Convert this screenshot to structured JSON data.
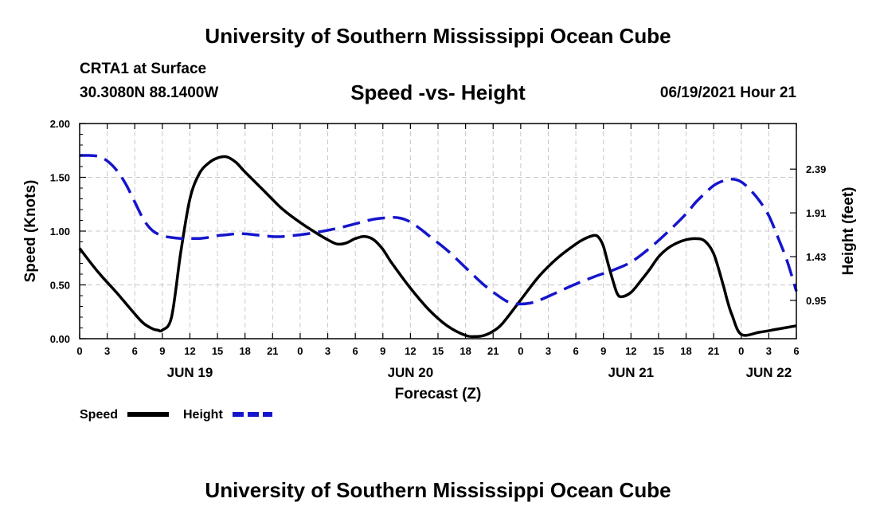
{
  "header": {
    "top_title": "University of Southern Mississippi Ocean Cube",
    "station": "CRTA1 at Surface",
    "coordinates": "30.3080N  88.1400W",
    "chart_title": "Speed -vs- Height",
    "datetime": "06/19/2021 Hour 21",
    "bottom_title": "University of Southern Mississippi Ocean Cube"
  },
  "colors": {
    "speed": "#000000",
    "height": "#1515cc",
    "grid": "#c8c8c8"
  },
  "chart_data": {
    "type": "line",
    "title": "Speed -vs- Height",
    "xlabel": "Forecast (Z)",
    "ylabel": "Speed (Knots)",
    "y2label": "Height (feet)",
    "xlim": [
      0,
      78
    ],
    "ylim": [
      0,
      2
    ],
    "y2lim": [
      0.53,
      2.89
    ],
    "x_ticks": [
      0,
      3,
      6,
      9,
      12,
      15,
      18,
      21,
      24,
      27,
      30,
      33,
      36,
      39,
      42,
      45,
      48,
      51,
      54,
      57,
      60,
      63,
      66,
      69,
      72,
      75,
      78
    ],
    "x_tick_labels": [
      "0",
      "3",
      "6",
      "9",
      "12",
      "15",
      "18",
      "21",
      "0",
      "3",
      "6",
      "9",
      "12",
      "15",
      "18",
      "21",
      "0",
      "3",
      "6",
      "9",
      "12",
      "15",
      "18",
      "21",
      "0",
      "3",
      "6"
    ],
    "day_labels": [
      {
        "x": 12,
        "label": "JUN 19"
      },
      {
        "x": 36,
        "label": "JUN 20"
      },
      {
        "x": 60,
        "label": "JUN 21"
      },
      {
        "x": 75,
        "label": "JUN 22"
      }
    ],
    "y_ticks": [
      0,
      0.5,
      1,
      1.5,
      2
    ],
    "y_tick_labels": [
      "0.00",
      "0.50",
      "1.00",
      "1.50",
      "2.00"
    ],
    "y2_ticks": [
      0.95,
      1.43,
      1.91,
      2.39
    ],
    "y2_tick_labels": [
      "0.95",
      "1.43",
      "1.91",
      "2.39"
    ],
    "series": [
      {
        "name": "Speed",
        "axis": "left",
        "style": "solid",
        "x": [
          0,
          2,
          4,
          6,
          7,
          8,
          8.5,
          9,
          10,
          11,
          12,
          13,
          14,
          15,
          16,
          17,
          18,
          20,
          22,
          24,
          26,
          27,
          28,
          29,
          30,
          31,
          32,
          33,
          34,
          36,
          38,
          40,
          42,
          43,
          44,
          45,
          46,
          48,
          50,
          52,
          54,
          55,
          56,
          56.5,
          57,
          57.5,
          58,
          58.5,
          59,
          60,
          61,
          62,
          63,
          64,
          65,
          66,
          67,
          68,
          69,
          70,
          70.5,
          71,
          72,
          74,
          76,
          78
        ],
        "values": [
          0.84,
          0.62,
          0.43,
          0.23,
          0.14,
          0.09,
          0.08,
          0.08,
          0.2,
          0.8,
          1.3,
          1.53,
          1.63,
          1.68,
          1.69,
          1.64,
          1.55,
          1.38,
          1.21,
          1.08,
          0.97,
          0.92,
          0.88,
          0.89,
          0.93,
          0.95,
          0.92,
          0.83,
          0.7,
          0.47,
          0.27,
          0.12,
          0.03,
          0.02,
          0.03,
          0.07,
          0.14,
          0.36,
          0.58,
          0.75,
          0.88,
          0.93,
          0.96,
          0.94,
          0.86,
          0.7,
          0.55,
          0.42,
          0.39,
          0.43,
          0.53,
          0.64,
          0.76,
          0.84,
          0.89,
          0.92,
          0.93,
          0.91,
          0.79,
          0.51,
          0.35,
          0.22,
          0.04,
          0.06,
          0.09,
          0.12
        ]
      },
      {
        "name": "Height",
        "axis": "right",
        "style": "dashed",
        "x": [
          0,
          1,
          2,
          3,
          4,
          5,
          6,
          7,
          8,
          9,
          10,
          11,
          12,
          13,
          14,
          15,
          16,
          17,
          18,
          19,
          20,
          21,
          22,
          24,
          26,
          28,
          30,
          32,
          34,
          35,
          36,
          37,
          38,
          40,
          42,
          44,
          46,
          47,
          48,
          49,
          50,
          52,
          54,
          56,
          58,
          60,
          62,
          64,
          66,
          67,
          68,
          69,
          70,
          71,
          72,
          73,
          74,
          75,
          76,
          77,
          78
        ],
        "values": [
          2.54,
          2.54,
          2.53,
          2.48,
          2.38,
          2.23,
          2.03,
          1.83,
          1.71,
          1.66,
          1.64,
          1.63,
          1.63,
          1.63,
          1.64,
          1.66,
          1.67,
          1.68,
          1.68,
          1.67,
          1.66,
          1.65,
          1.65,
          1.67,
          1.7,
          1.74,
          1.79,
          1.84,
          1.86,
          1.85,
          1.81,
          1.74,
          1.66,
          1.5,
          1.31,
          1.12,
          0.97,
          0.92,
          0.91,
          0.92,
          0.95,
          1.04,
          1.13,
          1.21,
          1.28,
          1.37,
          1.52,
          1.7,
          1.9,
          2.02,
          2.12,
          2.21,
          2.26,
          2.28,
          2.25,
          2.16,
          2.04,
          1.88,
          1.64,
          1.38,
          1.05
        ]
      }
    ],
    "legend": [
      "Speed",
      "Height"
    ],
    "legend_position": "bottom-left",
    "grid": true
  }
}
